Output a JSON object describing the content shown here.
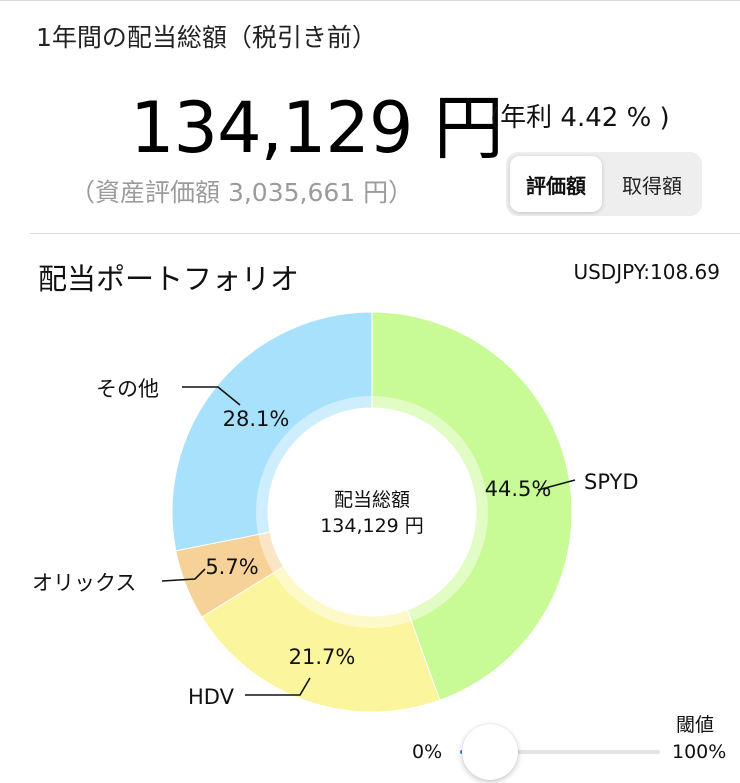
{
  "summary": {
    "title": "1年間の配当総額（税引き前）",
    "total_amount": "134,129 円",
    "annual_yield": "(年利 4.42 % )",
    "asset_value": "（資産評価額 3,035,661 円）"
  },
  "toggle": {
    "options": [
      "評価額",
      "取得額"
    ],
    "selected": "評価額"
  },
  "portfolio": {
    "title": "配当ポートフォリオ",
    "fx_rate": "USDJPY:108.69"
  },
  "chart_data": {
    "type": "pie",
    "center_label": "配当総額",
    "center_value": "134,129 円",
    "slices": [
      {
        "name": "SPYD",
        "value": 44.5,
        "value_label": "44.5%",
        "color": "#c8fa95"
      },
      {
        "name": "HDV",
        "value": 21.7,
        "value_label": "21.7%",
        "color": "#fbf59d"
      },
      {
        "name": "オリックス",
        "value": 5.7,
        "value_label": "5.7%",
        "color": "#f6d198"
      },
      {
        "name": "その他",
        "value": 28.1,
        "value_label": "28.1%",
        "color": "#a8e1fb"
      }
    ]
  },
  "threshold": {
    "label": "閾値",
    "min_label": "0%",
    "max_label": "100%",
    "value": 0
  },
  "colors": {
    "accent": "#3a82f7",
    "muted_text": "#9b9b9b"
  }
}
